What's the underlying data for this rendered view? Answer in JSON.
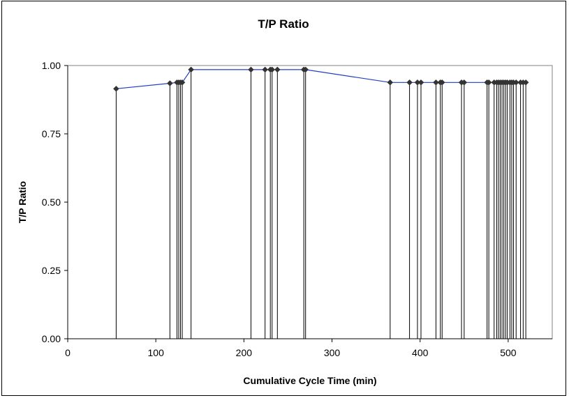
{
  "chart_data": {
    "type": "line",
    "title": "T/P Ratio",
    "xlabel": "Cumulative Cycle Time (min)",
    "ylabel": "T/P Ratio",
    "xlim": [
      0,
      550
    ],
    "ylim": [
      0,
      1
    ],
    "xticks": [
      "0",
      "100",
      "200",
      "300",
      "400",
      "500"
    ],
    "yticks": [
      "0.00",
      "0.25",
      "0.50",
      "0.75",
      "1.00"
    ],
    "grid": false,
    "legend": "none",
    "colors": {
      "line": "#1f3fbf",
      "marker": "#333333",
      "stem": "#000000",
      "plot_border": "#808080"
    },
    "series": [
      {
        "x": [
          55,
          116,
          124,
          126,
          128,
          130,
          140,
          208,
          224,
          230,
          232,
          238,
          268,
          270,
          366,
          388,
          397,
          401,
          418,
          423,
          425,
          447,
          450,
          476,
          478,
          484,
          487,
          489,
          491,
          493,
          495,
          497,
          499,
          502,
          504,
          506,
          509,
          514,
          517,
          520
        ],
        "values": [
          0.915,
          0.935,
          0.938,
          0.938,
          0.938,
          0.938,
          0.985,
          0.985,
          0.985,
          0.985,
          0.985,
          0.985,
          0.985,
          0.985,
          0.938,
          0.938,
          0.938,
          0.938,
          0.938,
          0.938,
          0.938,
          0.938,
          0.938,
          0.938,
          0.938,
          0.938,
          0.938,
          0.938,
          0.938,
          0.938,
          0.938,
          0.938,
          0.938,
          0.938,
          0.938,
          0.938,
          0.938,
          0.938,
          0.938,
          0.938
        ]
      }
    ]
  }
}
